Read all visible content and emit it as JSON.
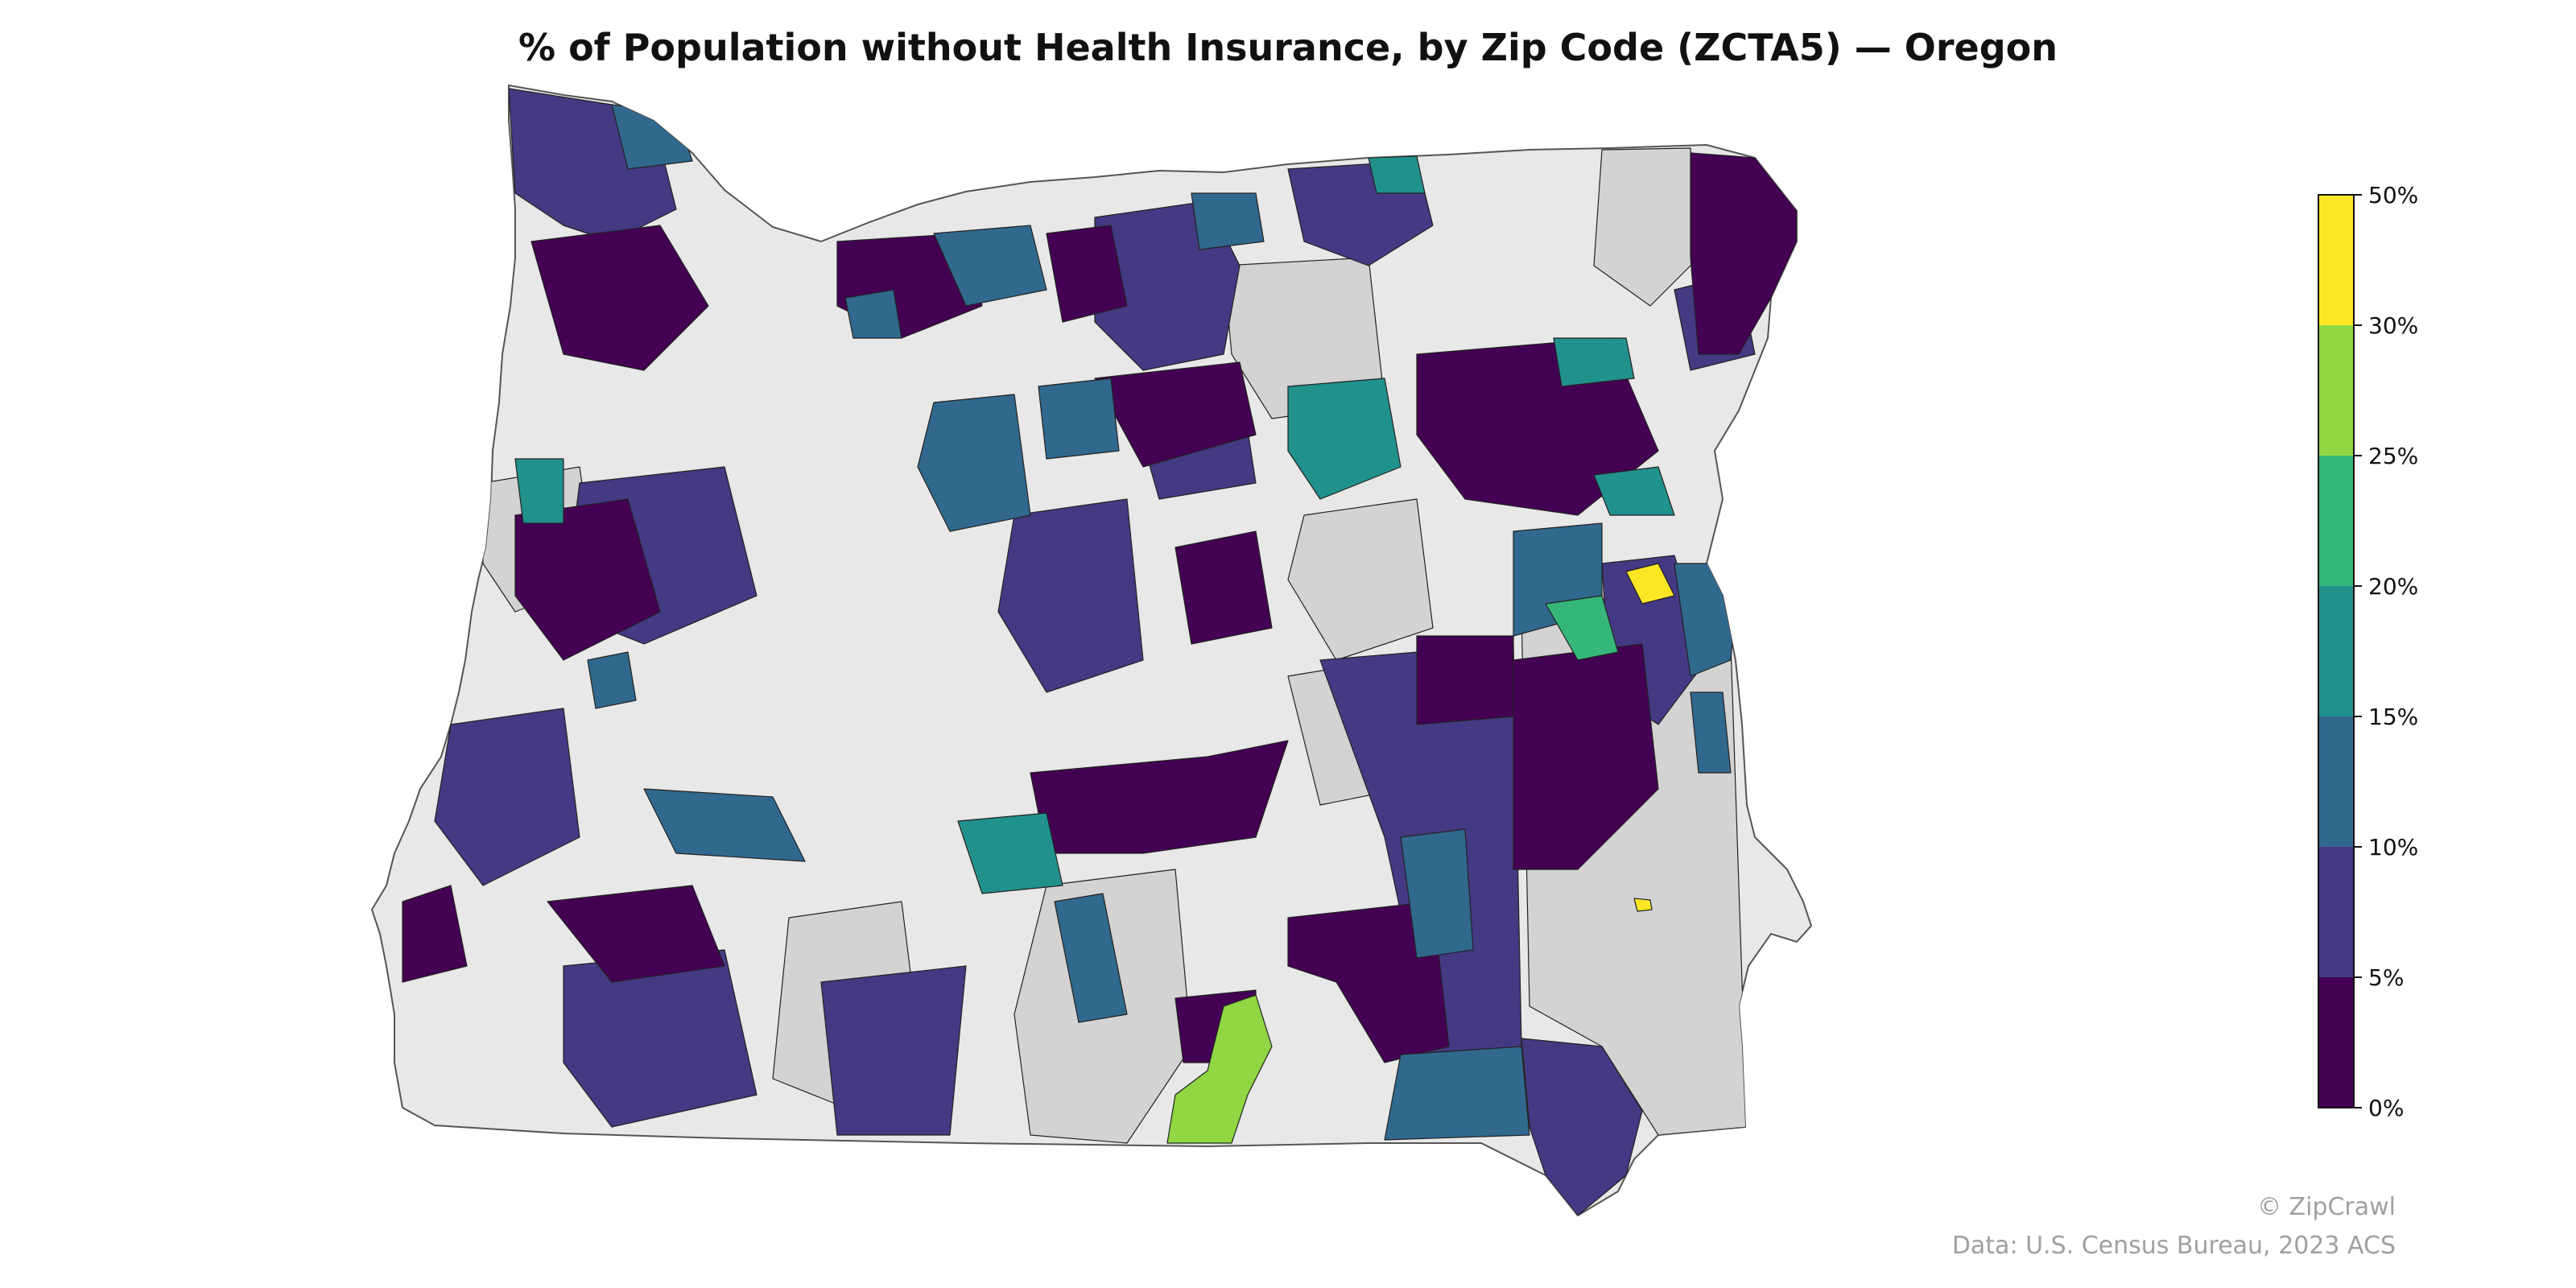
{
  "title": "% of Population without Health Insurance, by Zip Code (ZCTA5) — Oregon",
  "legend": {
    "ticks": [
      "0%",
      "5%",
      "10%",
      "15%",
      "20%",
      "25%",
      "30%",
      "50%"
    ],
    "colors": [
      "#440154",
      "#443983",
      "#31688e",
      "#21918c",
      "#35b779",
      "#90d743",
      "#fde725"
    ],
    "no_data_color": "#d3d3d3",
    "background_color": "#e8e8e8"
  },
  "credits": {
    "brand": "© ZipCrawl",
    "source": "Data: U.S. Census Bureau, 2023 ACS"
  }
}
